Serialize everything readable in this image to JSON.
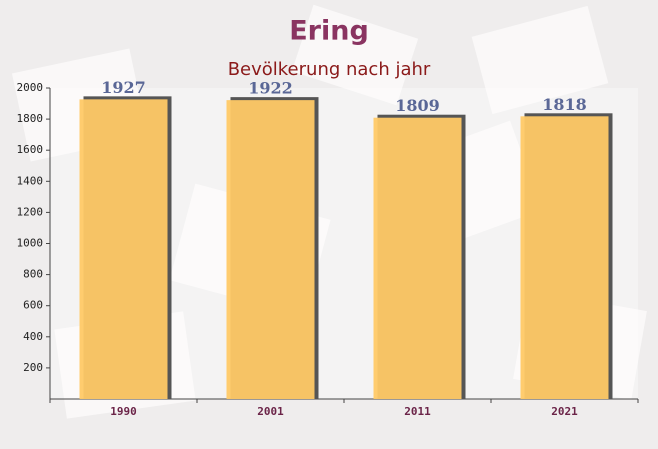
{
  "chart_data": {
    "type": "bar",
    "title": "Ering",
    "subtitle": "Bevölkerung nach jahr",
    "categories": [
      "1990",
      "2001",
      "2011",
      "2021"
    ],
    "values": [
      1927,
      1922,
      1809,
      1818
    ],
    "color": "#ffc966",
    "ylim": [
      0,
      2000
    ],
    "yticks": [
      200,
      400,
      600,
      800,
      1000,
      1200,
      1400,
      1600,
      1800,
      2000
    ]
  }
}
